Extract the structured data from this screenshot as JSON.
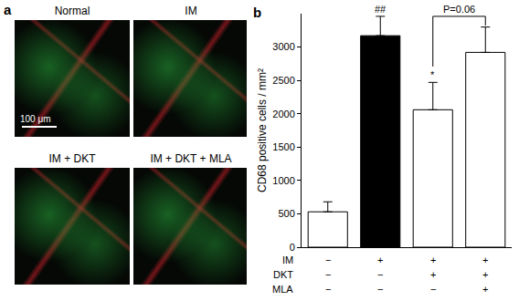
{
  "panel_a": {
    "label": "a",
    "images": [
      "Normal",
      "IM",
      "IM + DKT",
      "IM + DKT + MLA"
    ],
    "scale_bar": "100 μm"
  },
  "chart_data": {
    "type": "bar",
    "panel_label": "b",
    "categories": [
      null,
      null,
      null,
      null
    ],
    "values": [
      530,
      3170,
      2060,
      2920
    ],
    "errors": [
      150,
      290,
      410,
      380
    ],
    "colors": [
      "#ffffff",
      "#000000",
      "#ffffff",
      "#ffffff"
    ],
    "ylabel": "CD68 positive cells / mm²",
    "ylim": [
      0,
      3500
    ],
    "yticks": [
      0,
      500,
      1000,
      1500,
      2000,
      2500,
      3000
    ],
    "grid": false,
    "tick_labels": "y",
    "annotations": [
      {
        "text": "##",
        "at": 1
      },
      {
        "text": "*",
        "at": 2
      }
    ],
    "bracket": {
      "from": 2,
      "to": 3,
      "y": 3460,
      "label": "P=0.06"
    },
    "treatments": [
      {
        "label": "IM",
        "signs": [
          "−",
          "+",
          "+",
          "+"
        ]
      },
      {
        "label": "DKT",
        "signs": [
          "−",
          "−",
          "+",
          "+"
        ]
      },
      {
        "label": "MLA",
        "signs": [
          "−",
          "−",
          "−",
          "+"
        ]
      }
    ]
  }
}
